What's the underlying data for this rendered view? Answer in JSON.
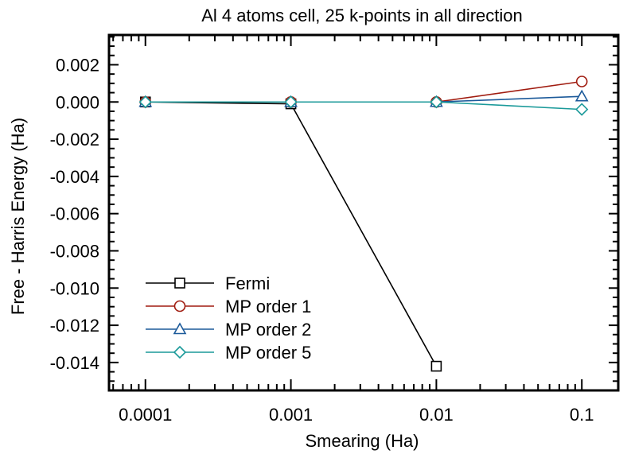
{
  "chart_data": {
    "type": "line",
    "title": "Al 4 atoms cell, 25 k-points in all direction",
    "xlabel": "Smearing (Ha)",
    "ylabel": "Free - Harris Energy (Ha)",
    "xscale": "log",
    "xlim": [
      5.62e-05,
      0.178
    ],
    "ylim": [
      -0.0155,
      0.0036
    ],
    "x_ticks": [
      0.0001,
      0.001,
      0.01,
      0.1
    ],
    "x_tick_labels": [
      "0.0001",
      "0.001",
      "0.01",
      "0.1"
    ],
    "y_ticks": [
      0.002,
      0.0,
      -0.002,
      -0.004,
      -0.006,
      -0.008,
      -0.01,
      -0.012,
      -0.014
    ],
    "y_tick_labels": [
      "0.002",
      "0.000",
      "-0.002",
      "-0.004",
      "-0.006",
      "-0.008",
      "-0.010",
      "-0.012",
      "-0.014"
    ],
    "grid": false,
    "legend_position": "bottom-left",
    "x": [
      0.0001,
      0.001,
      0.01,
      0.1
    ],
    "series": [
      {
        "name": "Fermi",
        "marker": "square",
        "color": "#000000",
        "values": [
          0.0,
          -0.0001,
          -0.0142,
          null
        ]
      },
      {
        "name": "MP order 1",
        "marker": "circle",
        "color": "#a01c10",
        "values": [
          0.0,
          0.0,
          0.0,
          0.0011
        ]
      },
      {
        "name": "MP order 2",
        "marker": "triangle",
        "color": "#1c5a9a",
        "values": [
          0.0,
          0.0,
          0.0,
          0.0003
        ]
      },
      {
        "name": "MP order 5",
        "marker": "diamond",
        "color": "#1b9a9a",
        "values": [
          0.0,
          0.0,
          0.0,
          -0.0004
        ]
      }
    ]
  }
}
